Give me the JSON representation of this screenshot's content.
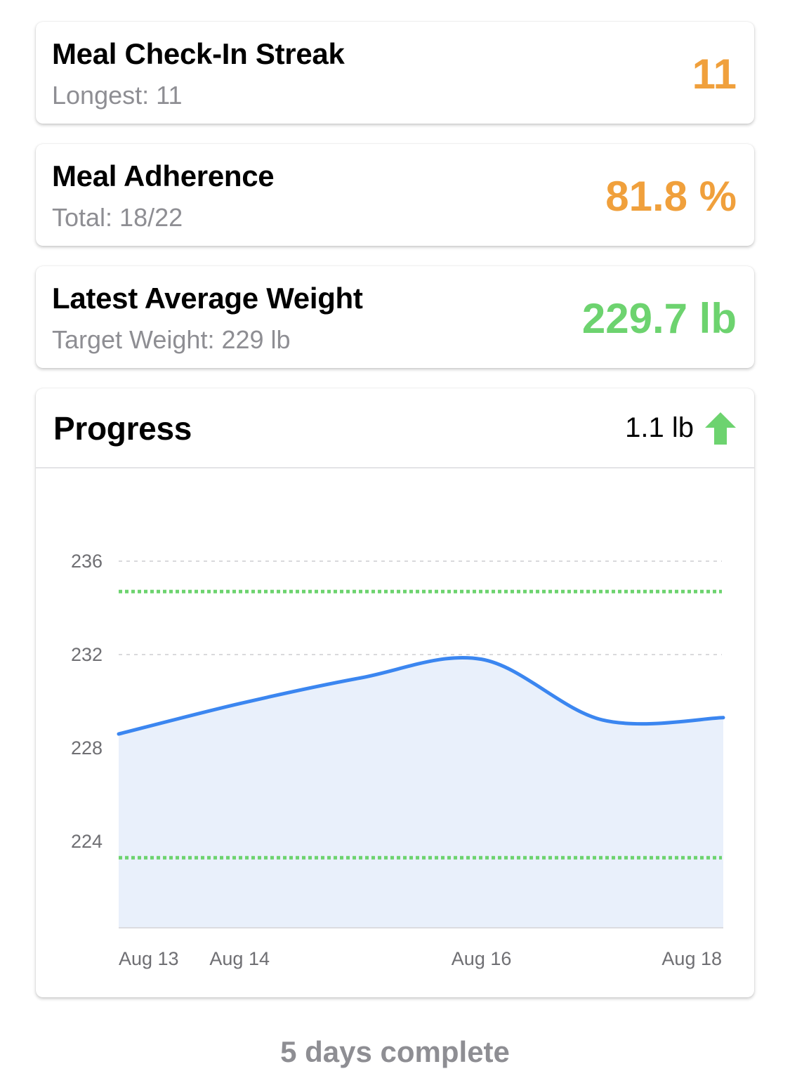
{
  "streak": {
    "title": "Meal Check-In Streak",
    "subtitle": "Longest: 11",
    "value": "11",
    "value_color": "#f0a03c"
  },
  "adherence": {
    "title": "Meal Adherence",
    "subtitle": "Total: 18/22",
    "value": "81.8 %",
    "value_color": "#f0a03c"
  },
  "weight": {
    "title": "Latest Average Weight",
    "subtitle": "Target Weight: 229 lb",
    "value": "229.7 lb",
    "value_color": "#6dd36f"
  },
  "progress": {
    "title": "Progress",
    "change": "1.1 lb",
    "arrow_icon": "arrow-up-icon",
    "arrow_color": "#6dd36f"
  },
  "chart_data": {
    "type": "area",
    "x_dates": [
      "2023-08-13",
      "2023-08-14",
      "2023-08-15",
      "2023-08-16",
      "2023-08-17",
      "2023-08-18"
    ],
    "values": [
      228.6,
      229.9,
      231.0,
      231.8,
      229.2,
      229.3
    ],
    "x_tick_labels": [
      "Aug 13",
      "Aug 14",
      "Aug 16",
      "Aug 18"
    ],
    "y_ticks": [
      224,
      228,
      232,
      236
    ],
    "ylim": [
      220.3,
      236
    ],
    "upper_band": 234.7,
    "lower_band": 223.3,
    "line_color": "#3b86f0",
    "fill_color": "#e9f0fb",
    "band_color": "#6dd36f",
    "grid": true
  },
  "footer": {
    "text": "5 days complete"
  }
}
